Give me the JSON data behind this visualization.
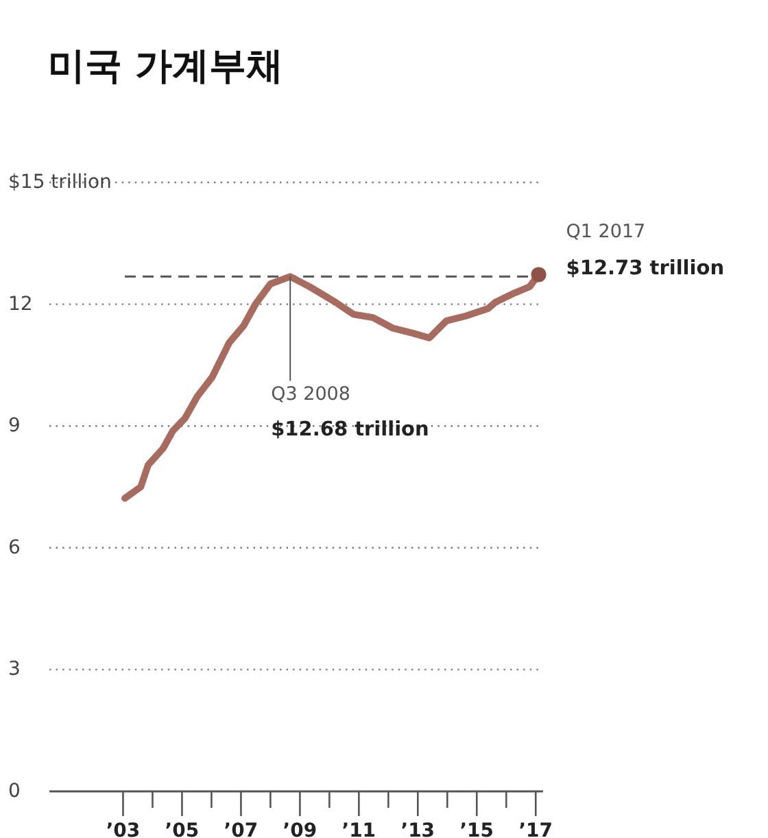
{
  "chart_data": {
    "type": "line",
    "title": "미국 가계부채",
    "series": [
      {
        "color": "#a86b60",
        "x": [
          2003.06,
          2003.6,
          2003.85,
          2004.36,
          2004.69,
          2005.1,
          2005.52,
          2006.02,
          2006.6,
          2007.09,
          2007.5,
          2008.0,
          2008.67,
          2009.33,
          2010.16,
          2010.82,
          2011.48,
          2012.15,
          2012.81,
          2013.39,
          2013.97,
          2014.63,
          2015.38,
          2015.63,
          2016.29,
          2016.79,
          2017.1
        ],
        "values": [
          7.22,
          7.5,
          8.04,
          8.45,
          8.88,
          9.19,
          9.73,
          10.2,
          11.05,
          11.47,
          12.01,
          12.5,
          12.68,
          12.43,
          12.07,
          11.75,
          11.67,
          11.41,
          11.29,
          11.17,
          11.59,
          11.71,
          11.89,
          12.05,
          12.28,
          12.43,
          12.73
        ]
      },
      {
        "type": "scatter",
        "marker": "circle",
        "color": "#8f5249",
        "x": [
          2017.1
        ],
        "values": [
          12.73
        ]
      }
    ],
    "xlim": [
      2000.5,
      2017.25
    ],
    "ylim": [
      0,
      15
    ],
    "xticks": [
      {
        "value": 2003,
        "label": "’03"
      },
      {
        "value": 2004,
        "label": null
      },
      {
        "value": 2005,
        "label": "’05"
      },
      {
        "value": 2006,
        "label": null
      },
      {
        "value": 2007,
        "label": "’07"
      },
      {
        "value": 2008,
        "label": null
      },
      {
        "value": 2009,
        "label": "’09"
      },
      {
        "value": 2010,
        "label": null
      },
      {
        "value": 2011,
        "label": "’11"
      },
      {
        "value": 2012,
        "label": null
      },
      {
        "value": 2013,
        "label": "’13"
      },
      {
        "value": 2014,
        "label": null
      },
      {
        "value": 2015,
        "label": "’15"
      },
      {
        "value": 2016,
        "label": null
      },
      {
        "value": 2017,
        "label": "’17"
      }
    ],
    "yticks": [
      0,
      3,
      6,
      9,
      12,
      {
        "value": 15,
        "label": "$15 trillion"
      }
    ],
    "grid": "y",
    "marker": "none",
    "line_style": "solid",
    "ref_lines": [
      {
        "axis": "y",
        "value": 12.68,
        "color": "#555555",
        "line_style": "dashed"
      }
    ],
    "annotations": [
      "Q1 2017",
      "$12.73 trillion",
      {
        "text": "Q3 2008",
        "x": 2008.67,
        "y": 12.68
      },
      "$12.68 trillion"
    ]
  }
}
